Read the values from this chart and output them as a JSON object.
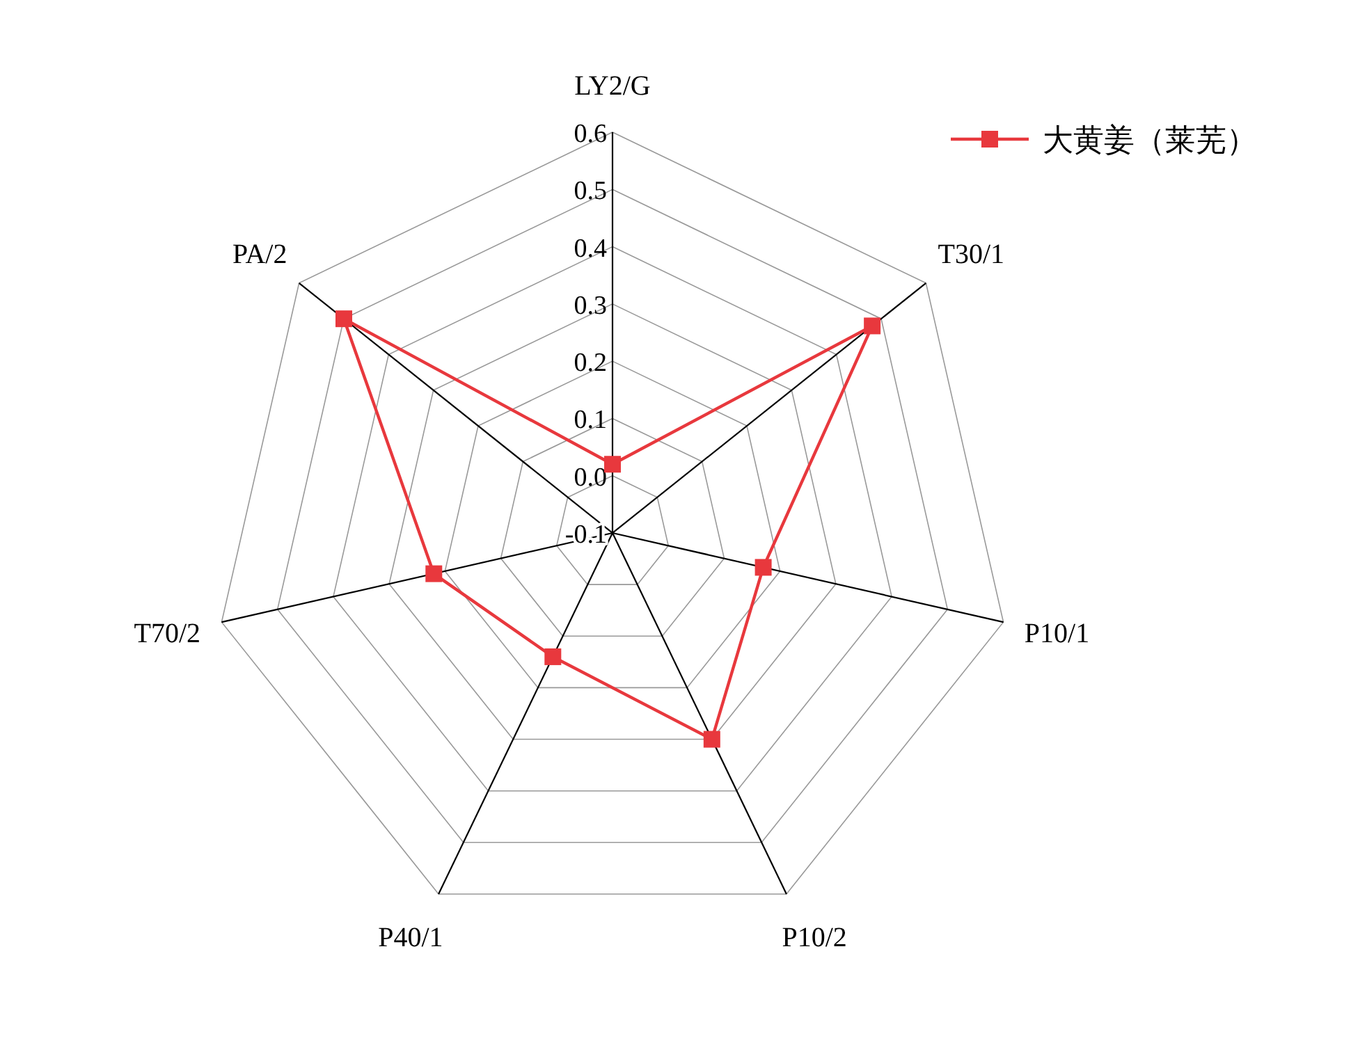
{
  "chart_data": {
    "type": "radar",
    "categories": [
      "LY2/G",
      "T30/1",
      "P10/1",
      "P10/2",
      "P40/1",
      "T70/2",
      "PA/2"
    ],
    "series": [
      {
        "name": "大黄姜（莱芜）",
        "color": "#e8383d",
        "values": [
          0.02,
          0.48,
          0.17,
          0.3,
          0.14,
          0.22,
          0.5
        ]
      }
    ],
    "ylim": [
      -0.1,
      0.6
    ],
    "yticks": [
      -0.1,
      {
        "value": 0,
        "label": "0.0"
      },
      0.1,
      0.2,
      0.3,
      0.4,
      0.5,
      0.6
    ],
    "marker": "square",
    "line_style": "solid",
    "legend": "top right",
    "grid": true
  }
}
